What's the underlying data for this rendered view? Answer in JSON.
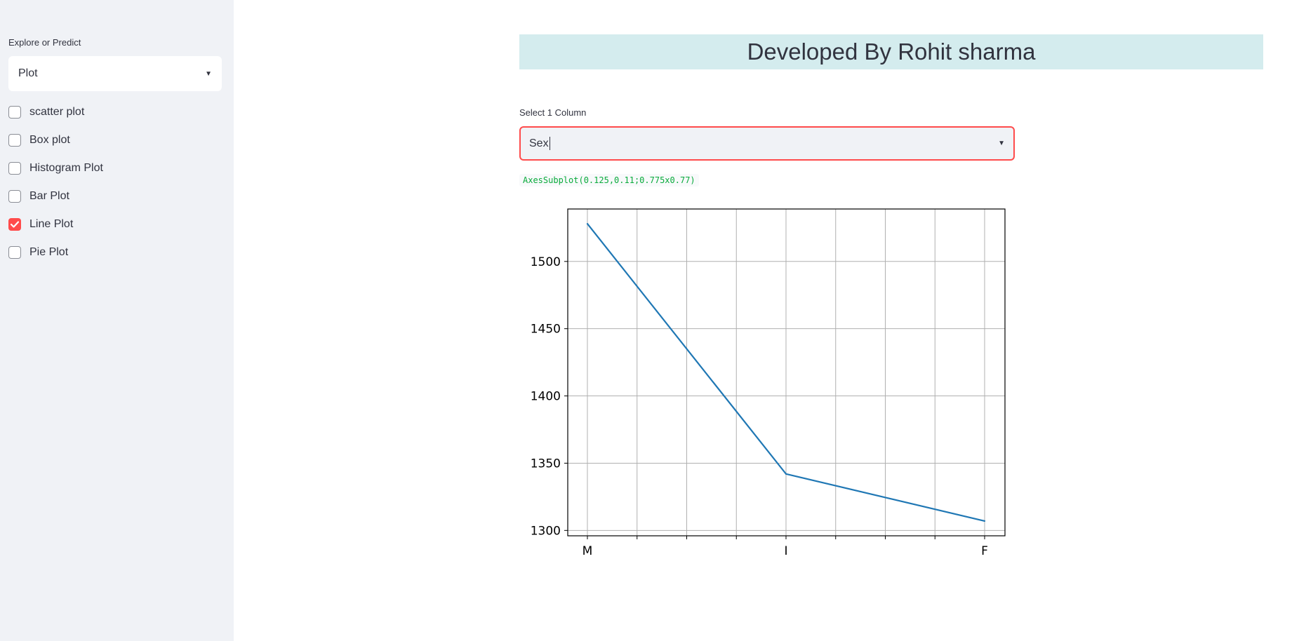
{
  "sidebar": {
    "label": "Explore or Predict",
    "select_value": "Plot",
    "checkboxes": [
      {
        "label": "scatter plot",
        "checked": false
      },
      {
        "label": "Box plot",
        "checked": false
      },
      {
        "label": "Histogram Plot",
        "checked": false
      },
      {
        "label": "Bar Plot",
        "checked": false
      },
      {
        "label": "Line Plot",
        "checked": true
      },
      {
        "label": "Pie Plot",
        "checked": false
      }
    ]
  },
  "main": {
    "header": "Developed By Rohit sharma",
    "column_label": "Select 1 Column",
    "column_value": "Sex",
    "code_output": "AxesSubplot(0.125,0.11;0.775x0.77)"
  },
  "colors": {
    "accent": "#ff4b4b",
    "banner": "#d4ecee",
    "sidebar_bg": "#f0f2f6",
    "line": "#1f77b4",
    "code_text": "#09ab3b"
  },
  "chart_data": {
    "type": "line",
    "categories": [
      "M",
      "I",
      "F"
    ],
    "values": [
      1528,
      1342,
      1307
    ],
    "yticks": [
      1300,
      1350,
      1400,
      1450,
      1500
    ],
    "ylim": [
      1296,
      1539
    ],
    "grid": true,
    "title": "",
    "xlabel": "",
    "ylabel": ""
  }
}
